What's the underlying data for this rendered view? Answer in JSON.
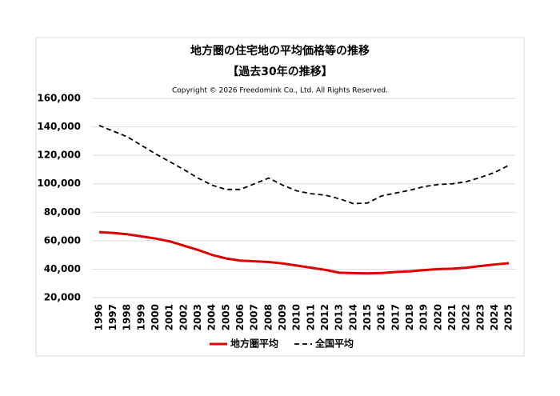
{
  "chart_data": {
    "type": "line",
    "title": "地方圏の住宅地の平均価格等の推移",
    "subtitle": "【過去30年の推移】",
    "annotation": "Copyright © 2026 Freedomink Co., Ltd. All Rights Reserved.",
    "categories": [
      "1996",
      "1997",
      "1998",
      "1999",
      "2000",
      "2001",
      "2002",
      "2003",
      "2004",
      "2005",
      "2006",
      "2007",
      "2008",
      "2009",
      "2010",
      "2011",
      "2012",
      "2013",
      "2014",
      "2015",
      "2016",
      "2017",
      "2018",
      "2019",
      "2020",
      "2021",
      "2022",
      "2023",
      "2024",
      "2025"
    ],
    "series": [
      {
        "name": "地方圏平均",
        "color": "#e00000",
        "dash": false,
        "values": [
          66000,
          65500,
          64500,
          63000,
          61500,
          59500,
          56500,
          53500,
          50000,
          47500,
          46000,
          45500,
          45000,
          44000,
          42500,
          41000,
          39500,
          37500,
          37200,
          37000,
          37300,
          38000,
          38500,
          39300,
          40000,
          40300,
          41000,
          42200,
          43300,
          44200
        ]
      },
      {
        "name": "全国平均",
        "color": "#000000",
        "dash": true,
        "values": [
          141000,
          137000,
          133000,
          127000,
          121000,
          115500,
          110000,
          104000,
          99000,
          96000,
          96000,
          100000,
          104000,
          99000,
          95000,
          93000,
          92000,
          89500,
          86000,
          86500,
          91500,
          93500,
          95500,
          98000,
          99500,
          100000,
          101500,
          104500,
          108000,
          113000
        ]
      }
    ],
    "ylim": [
      20000,
      160000
    ],
    "yticks": [
      {
        "value": 20000,
        "label": "20,000"
      },
      {
        "value": 40000,
        "label": "40,000"
      },
      {
        "value": 60000,
        "label": "60,000"
      },
      {
        "value": 80000,
        "label": "80,000"
      },
      {
        "value": 100000,
        "label": "100,000"
      },
      {
        "value": 120000,
        "label": "120,000"
      },
      {
        "value": 140000,
        "label": "140,000"
      },
      {
        "value": 160000,
        "label": "160,000"
      }
    ],
    "grid": true,
    "legend": "bottom"
  }
}
